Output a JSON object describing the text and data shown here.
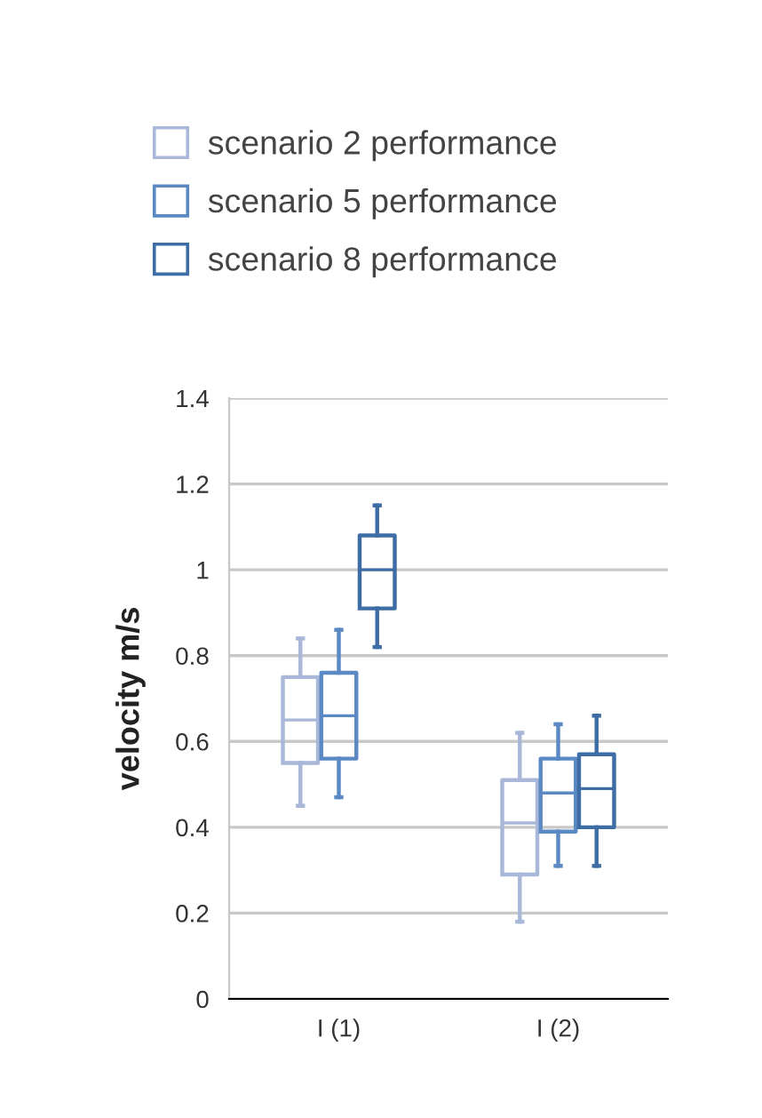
{
  "chart_data": {
    "type": "box",
    "ylabel": "velocity m/s",
    "categories": [
      "I (1)",
      "I (2)"
    ],
    "ylim": [
      0,
      1.4
    ],
    "yticks": [
      0,
      0.2,
      0.4,
      0.6,
      0.8,
      1,
      1.2,
      1.4
    ],
    "grid": "y",
    "legend": "top",
    "series": [
      {
        "name": "scenario 2 performance",
        "color": "#a9b7d9",
        "boxes": [
          {
            "low": 0.45,
            "q1": 0.55,
            "median": 0.65,
            "q3": 0.75,
            "high": 0.84
          },
          {
            "low": 0.18,
            "q1": 0.29,
            "median": 0.41,
            "q3": 0.51,
            "high": 0.62
          }
        ]
      },
      {
        "name": "scenario 5 performance",
        "color": "#5b89c4",
        "boxes": [
          {
            "low": 0.47,
            "q1": 0.56,
            "median": 0.66,
            "q3": 0.76,
            "high": 0.86
          },
          {
            "low": 0.31,
            "q1": 0.39,
            "median": 0.48,
            "q3": 0.56,
            "high": 0.64
          }
        ]
      },
      {
        "name": "scenario 8 performance",
        "color": "#3e6ca4",
        "boxes": [
          {
            "low": 0.82,
            "q1": 0.91,
            "median": 1.0,
            "q3": 1.08,
            "high": 1.15
          },
          {
            "low": 0.31,
            "q1": 0.4,
            "median": 0.49,
            "q3": 0.57,
            "high": 0.66
          }
        ]
      }
    ]
  }
}
